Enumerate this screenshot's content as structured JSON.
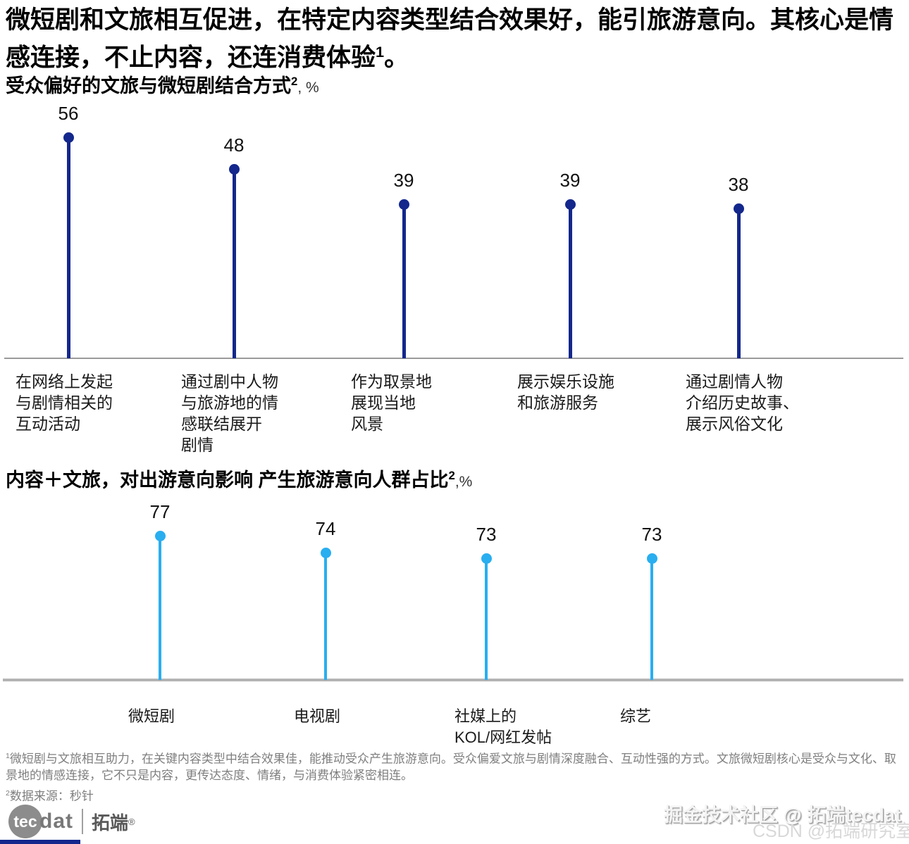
{
  "header": {
    "title_main": "微短剧和文旅相互促进，在特定内容类型结合效果好，能引旅游意向。其核心是情感连接，不止内容，还连消费体验",
    "title_sup": "1",
    "title_tail": "。"
  },
  "chart_data": [
    {
      "type": "bar",
      "variant": "lollipop",
      "title": "受众偏好的文旅与微短剧结合方式",
      "title_superscript": "2",
      "title_suffix": ", %",
      "unit": "%",
      "categories": [
        "在网络上发起与剧情相关的互动活动",
        "通过剧中人物与旅游地的情感联结展开剧情",
        "作为取景地展现当地风景",
        "展示娱乐设施和旅游服务",
        "通过剧情人物介绍历史故事、展示风俗文化"
      ],
      "category_lines": [
        [
          "在网络上发起",
          "与剧情相关的",
          "互动活动"
        ],
        [
          "通过剧中人物",
          "与旅游地的情",
          "感联结展开",
          "剧情"
        ],
        [
          "作为取景地",
          "展现当地",
          "风景"
        ],
        [
          "展示娱乐设施",
          "和旅游服务"
        ],
        [
          "通过剧情人物",
          "介绍历史故事、",
          "展示风俗文化"
        ]
      ],
      "values": [
        56,
        48,
        39,
        39,
        38
      ],
      "color": "#13278C",
      "ylim": [
        0,
        60
      ],
      "grid": false,
      "legend": "none"
    },
    {
      "type": "bar",
      "variant": "lollipop",
      "title": "内容＋文旅，对出游意向影响 产生旅游意向人群占比",
      "title_superscript": "2",
      "title_suffix": ",%",
      "unit": "%",
      "categories": [
        "微短剧",
        "电视剧",
        "社媒上的KOL/网红发帖",
        "综艺"
      ],
      "category_lines": [
        [
          "微短剧"
        ],
        [
          "电视剧"
        ],
        [
          "社媒上的",
          "KOL/网红发帖"
        ],
        [
          "综艺"
        ]
      ],
      "values": [
        77,
        74,
        73,
        73
      ],
      "color": "#29AEF0",
      "ylim": [
        0,
        85
      ],
      "grid": false,
      "legend": "none"
    }
  ],
  "footnotes": {
    "note1_sup": "1",
    "note1": "微短剧与文旅相互助力，在关键内容类型中结合效果佳，能推动受众产生旅游意向。受众偏爱文旅与剧情深度融合、互动性强的方式。文旅微短剧核心是受众与文化、取景地的情感连接，它不只是内容，更传达态度、情绪，与消费体验紧密相连。",
    "note2_sup": "2",
    "note2": "数据来源：秒针"
  },
  "footer": {
    "logo_tec": "tec",
    "logo_dat": "dat",
    "logo_cn": "拓端",
    "logo_reg": "®",
    "watermark1": "掘金技术社区 @ 拓端tecdat",
    "watermark2": "CSDN @拓端研究室"
  },
  "colors": {
    "navy": "#13278C",
    "cyan": "#29AEF0",
    "axis1": "#9a9a9a",
    "axis2": "#b3b3b3",
    "footnote_gray": "#7f7f7f"
  }
}
